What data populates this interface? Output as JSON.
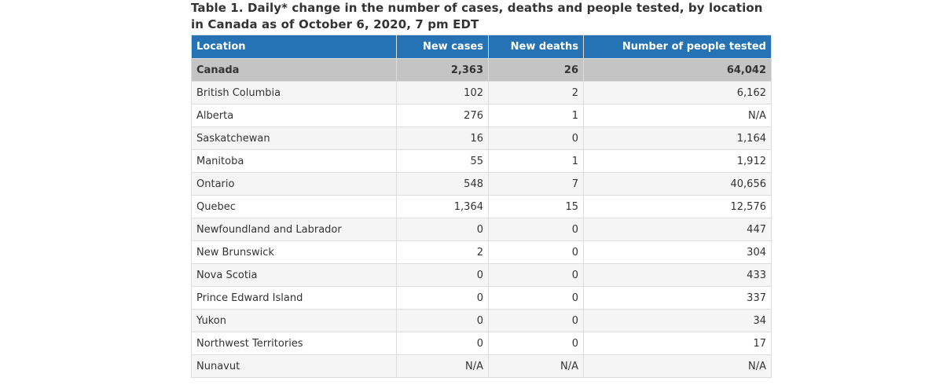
{
  "caption": "Table 1. Daily* change in the number of cases, deaths and people tested, by location in Canada as of October 6, 2020, 7 pm EDT",
  "headers": {
    "location": "Location",
    "new_cases": "New cases",
    "new_deaths": "New deaths",
    "people_tested": "Number of people tested"
  },
  "rows": [
    {
      "location": "Canada",
      "new_cases": "2,363",
      "new_deaths": "26",
      "people_tested": "64,042"
    },
    {
      "location": "British Columbia",
      "new_cases": "102",
      "new_deaths": "2",
      "people_tested": "6,162"
    },
    {
      "location": "Alberta",
      "new_cases": "276",
      "new_deaths": "1",
      "people_tested": "N/A"
    },
    {
      "location": "Saskatchewan",
      "new_cases": "16",
      "new_deaths": "0",
      "people_tested": "1,164"
    },
    {
      "location": "Manitoba",
      "new_cases": "55",
      "new_deaths": "1",
      "people_tested": "1,912"
    },
    {
      "location": "Ontario",
      "new_cases": "548",
      "new_deaths": "7",
      "people_tested": "40,656"
    },
    {
      "location": "Quebec",
      "new_cases": "1,364",
      "new_deaths": "15",
      "people_tested": "12,576"
    },
    {
      "location": "Newfoundland and Labrador",
      "new_cases": "0",
      "new_deaths": "0",
      "people_tested": "447"
    },
    {
      "location": "New Brunswick",
      "new_cases": "2",
      "new_deaths": "0",
      "people_tested": "304"
    },
    {
      "location": "Nova Scotia",
      "new_cases": "0",
      "new_deaths": "0",
      "people_tested": "433"
    },
    {
      "location": "Prince Edward Island",
      "new_cases": "0",
      "new_deaths": "0",
      "people_tested": "337"
    },
    {
      "location": "Yukon",
      "new_cases": "0",
      "new_deaths": "0",
      "people_tested": "34"
    },
    {
      "location": "Northwest Territories",
      "new_cases": "0",
      "new_deaths": "0",
      "people_tested": "17"
    },
    {
      "location": "Nunavut",
      "new_cases": "N/A",
      "new_deaths": "N/A",
      "people_tested": "N/A"
    }
  ],
  "colors": {
    "header_bg": "#2572b4",
    "total_row_bg": "#c4c4c4",
    "stripe_bg": "#f5f5f5"
  }
}
